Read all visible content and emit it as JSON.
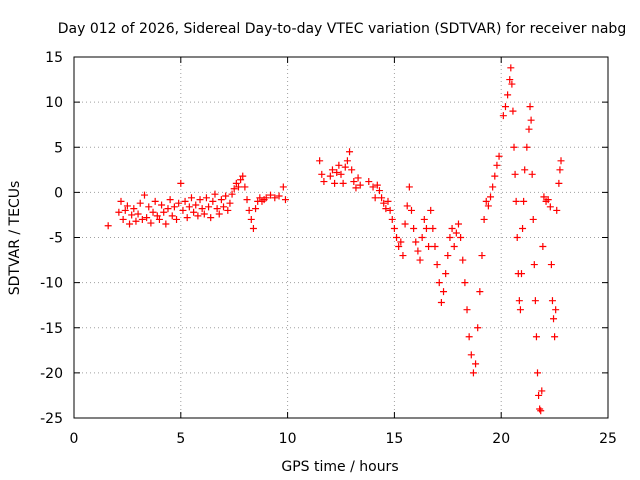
{
  "chart_data": {
    "type": "scatter",
    "title": "Day 012 of 2026, Sidereal Day-to-day VTEC variation (SDTVAR) for receiver nabg",
    "xlabel": "GPS time / hours",
    "ylabel": "SDTVAR / TECUs",
    "xlim": [
      0,
      25
    ],
    "ylim": [
      -25,
      15
    ],
    "x_ticks": [
      0,
      5,
      10,
      15,
      20,
      25
    ],
    "y_ticks": [
      -25,
      -20,
      -15,
      -10,
      -5,
      0,
      5,
      10,
      15
    ],
    "grid": true,
    "marker": "+",
    "series_color": "#ff0000",
    "series": [
      {
        "name": "SDTVAR",
        "points": [
          [
            1.6,
            -3.7
          ],
          [
            2.1,
            -2.2
          ],
          [
            2.2,
            -1.0
          ],
          [
            2.3,
            -3.0
          ],
          [
            2.4,
            -2.0
          ],
          [
            2.5,
            -1.5
          ],
          [
            2.6,
            -3.5
          ],
          [
            2.7,
            -2.5
          ],
          [
            2.8,
            -1.8
          ],
          [
            2.9,
            -3.2
          ],
          [
            3.0,
            -2.4
          ],
          [
            3.1,
            -1.2
          ],
          [
            3.2,
            -3.0
          ],
          [
            3.3,
            -0.3
          ],
          [
            3.4,
            -2.8
          ],
          [
            3.5,
            -1.6
          ],
          [
            3.6,
            -3.4
          ],
          [
            3.7,
            -2.2
          ],
          [
            3.8,
            -1.0
          ],
          [
            3.9,
            -2.6
          ],
          [
            4.0,
            -3.0
          ],
          [
            4.1,
            -1.4
          ],
          [
            4.2,
            -2.2
          ],
          [
            4.3,
            -3.5
          ],
          [
            4.4,
            -1.8
          ],
          [
            4.5,
            -0.8
          ],
          [
            4.6,
            -2.6
          ],
          [
            4.7,
            -1.6
          ],
          [
            4.8,
            -3.0
          ],
          [
            4.9,
            -1.2
          ],
          [
            5.0,
            1.0
          ],
          [
            5.1,
            -2.0
          ],
          [
            5.2,
            -1.0
          ],
          [
            5.3,
            -2.8
          ],
          [
            5.4,
            -1.6
          ],
          [
            5.5,
            -0.6
          ],
          [
            5.6,
            -2.2
          ],
          [
            5.7,
            -1.4
          ],
          [
            5.8,
            -2.6
          ],
          [
            5.9,
            -0.8
          ],
          [
            6.0,
            -1.8
          ],
          [
            6.1,
            -2.4
          ],
          [
            6.2,
            -0.6
          ],
          [
            6.3,
            -1.6
          ],
          [
            6.4,
            -2.8
          ],
          [
            6.5,
            -1.0
          ],
          [
            6.6,
            -0.2
          ],
          [
            6.7,
            -1.8
          ],
          [
            6.8,
            -2.4
          ],
          [
            6.9,
            -0.8
          ],
          [
            7.0,
            -1.6
          ],
          [
            7.1,
            -0.4
          ],
          [
            7.2,
            -2.0
          ],
          [
            7.3,
            -1.2
          ],
          [
            7.4,
            -0.2
          ],
          [
            7.5,
            0.4
          ],
          [
            7.6,
            1.0
          ],
          [
            7.7,
            0.6
          ],
          [
            7.8,
            1.4
          ],
          [
            7.9,
            1.8
          ],
          [
            8.0,
            0.6
          ],
          [
            8.1,
            -0.8
          ],
          [
            8.2,
            -2.0
          ],
          [
            8.3,
            -3.0
          ],
          [
            8.4,
            -4.0
          ],
          [
            8.5,
            -1.8
          ],
          [
            8.6,
            -1.0
          ],
          [
            8.7,
            -0.6
          ],
          [
            8.8,
            -1.0
          ],
          [
            8.9,
            -0.8
          ],
          [
            9.0,
            -0.6
          ],
          [
            9.2,
            -0.3
          ],
          [
            9.4,
            -0.6
          ],
          [
            9.6,
            -0.4
          ],
          [
            9.8,
            0.6
          ],
          [
            9.9,
            -0.8
          ],
          [
            11.5,
            3.5
          ],
          [
            11.6,
            2.0
          ],
          [
            11.7,
            1.2
          ],
          [
            12.0,
            1.8
          ],
          [
            12.1,
            2.5
          ],
          [
            12.2,
            1.0
          ],
          [
            12.3,
            2.2
          ],
          [
            12.4,
            3.0
          ],
          [
            12.5,
            2.0
          ],
          [
            12.6,
            1.0
          ],
          [
            12.7,
            2.8
          ],
          [
            12.8,
            3.5
          ],
          [
            12.9,
            4.5
          ],
          [
            13.0,
            2.5
          ],
          [
            13.1,
            1.2
          ],
          [
            13.2,
            0.5
          ],
          [
            13.3,
            1.6
          ],
          [
            13.4,
            0.8
          ],
          [
            13.8,
            1.2
          ],
          [
            14.0,
            0.6
          ],
          [
            14.1,
            -0.6
          ],
          [
            14.2,
            0.8
          ],
          [
            14.3,
            0.2
          ],
          [
            14.4,
            -0.6
          ],
          [
            14.5,
            -1.2
          ],
          [
            14.6,
            -1.8
          ],
          [
            14.7,
            -1.0
          ],
          [
            14.8,
            -2.0
          ],
          [
            14.9,
            -3.0
          ],
          [
            15.0,
            -4.0
          ],
          [
            15.1,
            -5.0
          ],
          [
            15.2,
            -6.0
          ],
          [
            15.3,
            -5.5
          ],
          [
            15.4,
            -7.0
          ],
          [
            15.5,
            -3.5
          ],
          [
            15.6,
            -1.5
          ],
          [
            15.7,
            0.6
          ],
          [
            15.8,
            -2.0
          ],
          [
            15.9,
            -4.0
          ],
          [
            16.0,
            -5.5
          ],
          [
            16.1,
            -6.5
          ],
          [
            16.2,
            -7.5
          ],
          [
            16.3,
            -5.0
          ],
          [
            16.4,
            -3.0
          ],
          [
            16.5,
            -4.0
          ],
          [
            16.6,
            -6.0
          ],
          [
            16.7,
            -2.0
          ],
          [
            16.8,
            -4.0
          ],
          [
            16.9,
            -6.0
          ],
          [
            17.0,
            -8.0
          ],
          [
            17.1,
            -10.0
          ],
          [
            17.2,
            -12.2
          ],
          [
            17.3,
            -11.0
          ],
          [
            17.4,
            -9.0
          ],
          [
            17.5,
            -7.0
          ],
          [
            17.6,
            -5.0
          ],
          [
            17.7,
            -4.0
          ],
          [
            17.8,
            -6.0
          ],
          [
            17.9,
            -4.5
          ],
          [
            18.0,
            -3.5
          ],
          [
            18.1,
            -5.0
          ],
          [
            18.2,
            -7.5
          ],
          [
            18.3,
            -10.0
          ],
          [
            18.4,
            -13.0
          ],
          [
            18.5,
            -16.0
          ],
          [
            18.6,
            -18.0
          ],
          [
            18.7,
            -20.0
          ],
          [
            18.8,
            -19.0
          ],
          [
            18.9,
            -15.0
          ],
          [
            19.0,
            -11.0
          ],
          [
            19.1,
            -7.0
          ],
          [
            19.2,
            -3.0
          ],
          [
            19.3,
            -1.0
          ],
          [
            19.4,
            -1.5
          ],
          [
            19.5,
            -0.5
          ],
          [
            19.6,
            0.6
          ],
          [
            19.7,
            1.8
          ],
          [
            19.8,
            3.0
          ],
          [
            19.9,
            4.0
          ],
          [
            20.1,
            8.5
          ],
          [
            20.2,
            9.5
          ],
          [
            20.3,
            10.8
          ],
          [
            20.4,
            12.5
          ],
          [
            20.45,
            13.8
          ],
          [
            20.5,
            12.0
          ],
          [
            20.55,
            9.0
          ],
          [
            20.6,
            5.0
          ],
          [
            20.65,
            2.0
          ],
          [
            20.7,
            -1.0
          ],
          [
            20.75,
            -5.0
          ],
          [
            20.8,
            -9.0
          ],
          [
            20.85,
            -12.0
          ],
          [
            20.9,
            -13.0
          ],
          [
            20.95,
            -9.0
          ],
          [
            21.0,
            -4.0
          ],
          [
            21.05,
            -1.0
          ],
          [
            21.1,
            2.5
          ],
          [
            21.2,
            5.0
          ],
          [
            21.3,
            7.0
          ],
          [
            21.35,
            9.5
          ],
          [
            21.4,
            8.0
          ],
          [
            21.45,
            2.0
          ],
          [
            21.5,
            -3.0
          ],
          [
            21.55,
            -8.0
          ],
          [
            21.6,
            -12.0
          ],
          [
            21.65,
            -16.0
          ],
          [
            21.7,
            -20.0
          ],
          [
            21.75,
            -22.5
          ],
          [
            21.8,
            -24.0
          ],
          [
            21.85,
            -24.2
          ],
          [
            21.9,
            -22.0
          ],
          [
            21.95,
            -6.0
          ],
          [
            22.0,
            -0.5
          ],
          [
            22.1,
            -1.0
          ],
          [
            22.2,
            -0.8
          ],
          [
            22.3,
            -1.6
          ],
          [
            22.35,
            -8.0
          ],
          [
            22.4,
            -12.0
          ],
          [
            22.45,
            -14.0
          ],
          [
            22.5,
            -16.0
          ],
          [
            22.55,
            -13.0
          ],
          [
            22.6,
            -2.0
          ],
          [
            22.7,
            1.0
          ],
          [
            22.75,
            2.5
          ],
          [
            22.8,
            3.5
          ]
        ]
      }
    ]
  }
}
